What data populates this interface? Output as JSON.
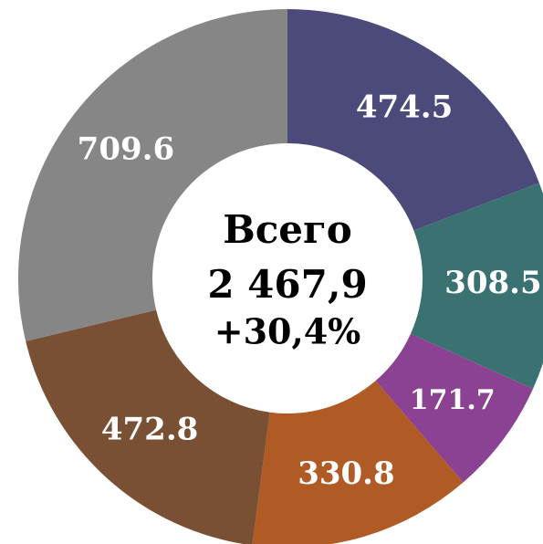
{
  "chart_data": {
    "type": "donut",
    "values": [
      474.5,
      308.5,
      171.7,
      330.8,
      472.8,
      709.6
    ],
    "colors": [
      "#4b4a7a",
      "#3a7272",
      "#8c4293",
      "#b05a26",
      "#7a5034",
      "#868686"
    ],
    "center_text": [
      "Всего",
      "2 467,9",
      "+30,4%"
    ]
  }
}
